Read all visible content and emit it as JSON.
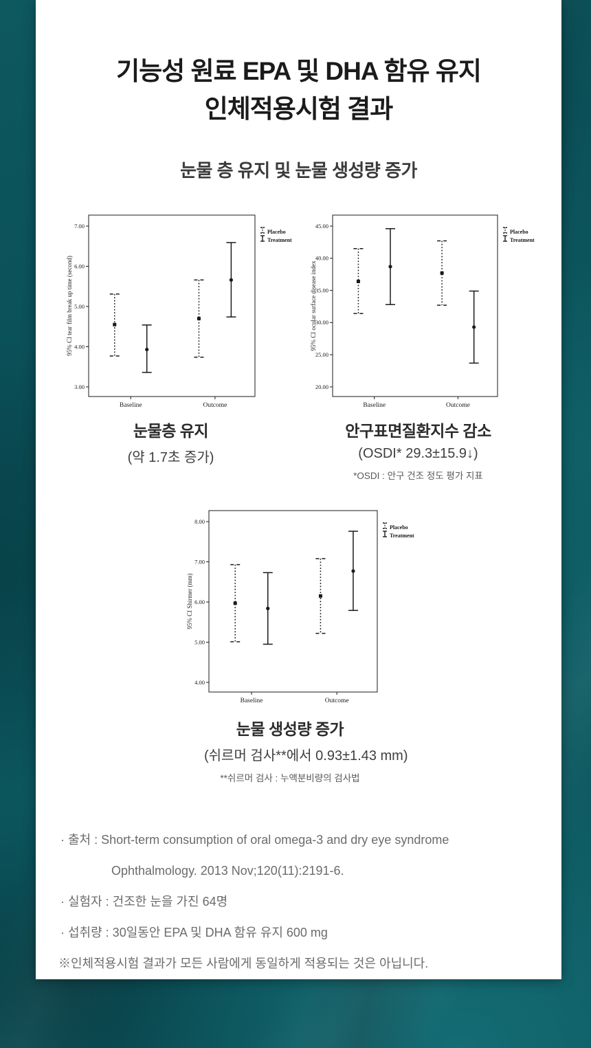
{
  "title": {
    "line1": "기능성 원료 EPA 및 DHA 함유 유지",
    "line2": "인체적용시험 결과"
  },
  "subtitle": "눈물 층 유지 및 눈물 생성량 증가",
  "captions": {
    "chart1": {
      "title": "눈물층 유지",
      "detail": "(약 1.7초 증가)"
    },
    "chart2": {
      "title": "안구표면질환지수 감소",
      "detail": "(OSDI* 29.3±15.9↓)",
      "footnote": "*OSDI : 안구 건조 정도 평가 지표"
    },
    "chart3": {
      "title": "눈물 생성량 증가",
      "detail": "(쉬르머 검사**에서 0.93±1.43 mm)",
      "footnote": "**쉬르머 검사 : 누액분비량의 검사법"
    }
  },
  "notes": [
    "· 출처 : Short-term consumption of oral omega-3 and dry eye syndrome",
    "Ophthalmology. 2013 Nov;120(11):2191-6.",
    "· 실험자 : 건조한 눈을 가진 64명",
    "· 섭취량 : 30일동안 EPA 및 DHA 함유 유지 600 mg",
    "※인체적용시험 결과가 모든 사람에게 동일하게 적용되는 것은 아닙니다."
  ],
  "colors": {
    "background_teal": "#0b535b",
    "card": "#ffffff",
    "chart_ink": "#1a1a1a",
    "title_text": "#1b1b1b",
    "note_text": "#6b6b6b"
  },
  "chart_data": [
    {
      "type": "errorbar",
      "title": "95% CI tear film break up time by visit",
      "ylabel": "95% CI tear film break up time  (second)",
      "xlabel": "",
      "ymin": 3,
      "ymax": 7,
      "ystep": 1,
      "grid": false,
      "legend_position": "right-top",
      "categories": [
        "Baseline",
        "Outcome"
      ],
      "series": [
        {
          "name": "Placebo",
          "style": "dotted",
          "points": [
            {
              "mean": 4.55,
              "lo": 3.77,
              "hi": 5.31
            },
            {
              "mean": 4.7,
              "lo": 3.74,
              "hi": 5.66
            }
          ]
        },
        {
          "name": "Treatment",
          "style": "solid",
          "points": [
            {
              "mean": 3.93,
              "lo": 3.36,
              "hi": 4.54
            },
            {
              "mean": 5.66,
              "lo": 4.74,
              "hi": 6.59
            }
          ]
        }
      ]
    },
    {
      "type": "errorbar",
      "title": "95% CI ocular surface disease index by visit",
      "ylabel": "95% CI ocular surface disease index",
      "xlabel": "",
      "ymin": 20,
      "ymax": 45,
      "ystep": 5,
      "grid": false,
      "legend_position": "right-top",
      "categories": [
        "Baseline",
        "Outcome"
      ],
      "series": [
        {
          "name": "Placebo",
          "style": "dotted",
          "points": [
            {
              "mean": 36.4,
              "lo": 31.4,
              "hi": 41.5
            },
            {
              "mean": 37.7,
              "lo": 32.7,
              "hi": 42.7
            }
          ]
        },
        {
          "name": "Treatment",
          "style": "solid",
          "points": [
            {
              "mean": 38.7,
              "lo": 32.8,
              "hi": 44.6
            },
            {
              "mean": 29.3,
              "lo": 23.7,
              "hi": 34.9
            }
          ]
        }
      ]
    },
    {
      "type": "errorbar",
      "title": "95% CI Shirmer by visit",
      "ylabel": "95% CI Shirmer (mm)",
      "xlabel": "",
      "ymin": 4,
      "ymax": 8,
      "ystep": 1,
      "grid": false,
      "legend_position": "right-top",
      "categories": [
        "Baseline",
        "Outcome"
      ],
      "series": [
        {
          "name": "Placebo",
          "style": "dotted",
          "points": [
            {
              "mean": 5.97,
              "lo": 5.01,
              "hi": 6.93
            },
            {
              "mean": 6.15,
              "lo": 5.22,
              "hi": 7.08
            }
          ]
        },
        {
          "name": "Treatment",
          "style": "solid",
          "points": [
            {
              "mean": 5.84,
              "lo": 4.95,
              "hi": 6.73
            },
            {
              "mean": 6.77,
              "lo": 5.79,
              "hi": 7.76
            }
          ]
        }
      ]
    }
  ]
}
